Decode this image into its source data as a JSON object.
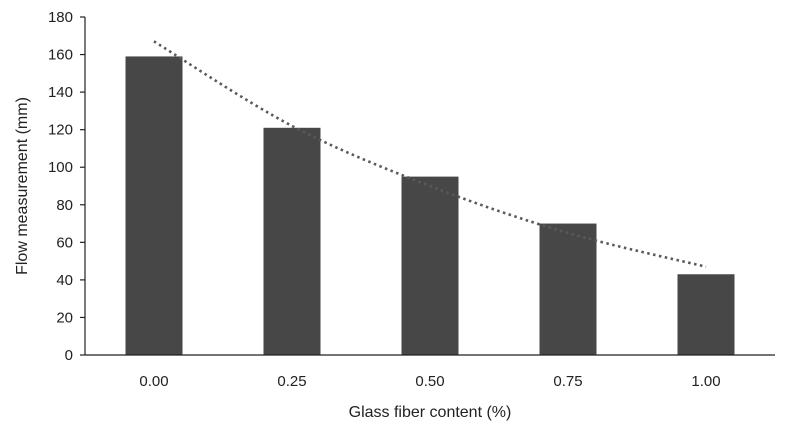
{
  "chart_data": {
    "type": "bar",
    "title": "",
    "xlabel": "Glass fiber content (%)",
    "ylabel": "Flow measurement (mm)",
    "categories": [
      "0.00",
      "0.25",
      "0.50",
      "0.75",
      "1.00"
    ],
    "values": [
      159,
      121,
      95,
      70,
      43
    ],
    "ylim": [
      0,
      180
    ],
    "yticks": [
      0,
      20,
      40,
      60,
      80,
      100,
      120,
      140,
      160,
      180
    ],
    "ytick_labels": [
      "0",
      "20",
      "40",
      "60",
      "80",
      "100",
      "120",
      "140",
      "160",
      "180"
    ],
    "grid": false,
    "legend": "none",
    "trendline": {
      "style": "dotted",
      "values": [
        167,
        122,
        90,
        65,
        47
      ]
    },
    "colors": {
      "bar": "#474747",
      "trendline": "#595959",
      "axis": "#222222"
    }
  }
}
